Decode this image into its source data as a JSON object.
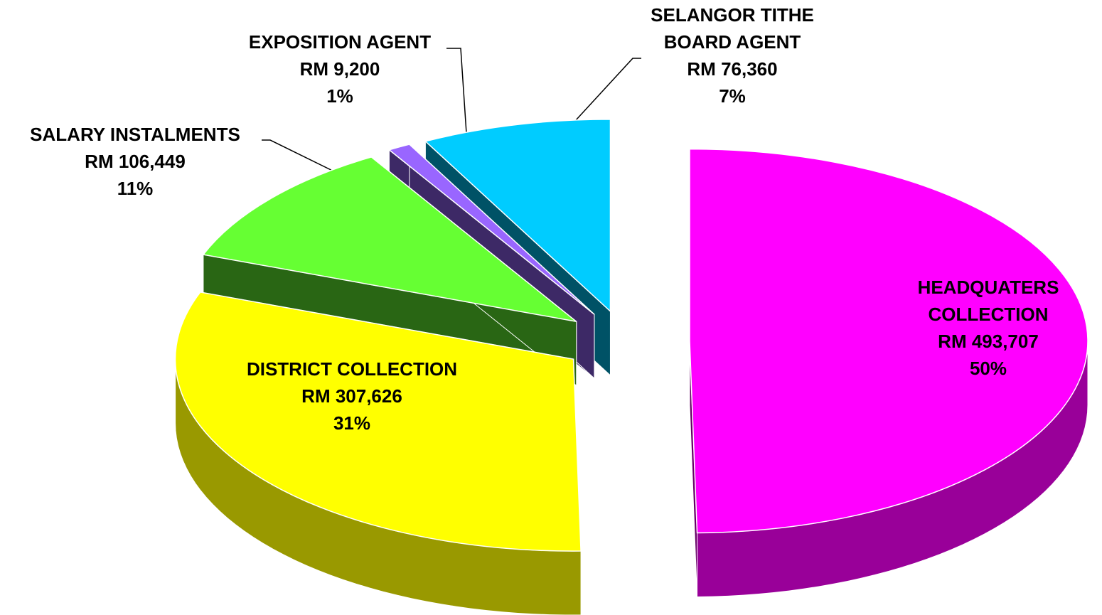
{
  "chart_data": {
    "type": "pie3d",
    "categories": [
      "HEADQUATERS COLLECTION",
      "DISTRICT COLLECTION",
      "SALARY INSTALMENTS",
      "EXPOSITION AGENT",
      "SELANGOR TITHE BOARD AGENT"
    ],
    "values": [
      493707,
      307626,
      106449,
      9200,
      76360
    ],
    "value_labels": [
      "RM 493,707",
      "RM 307,626",
      "RM 106,449",
      "RM 9,200",
      "RM 76,360"
    ],
    "percentages": [
      50,
      31,
      11,
      1,
      7
    ],
    "percentage_labels": [
      "50%",
      "31%",
      "11%",
      "1%",
      "7%"
    ],
    "colors": [
      "#ff00ff",
      "#ffff00",
      "#66ff33",
      "#9966ff",
      "#00ccff"
    ]
  }
}
